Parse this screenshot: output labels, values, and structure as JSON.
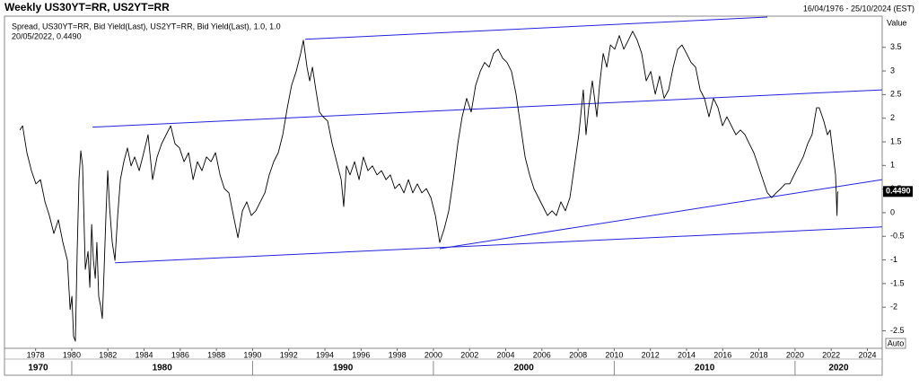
{
  "chart_data": {
    "type": "line",
    "title": "Weekly US30YT=RR, US2YT=RR",
    "date_range": "16/04/1976 - 25/10/2024 (EST)",
    "readout": "20/05/2022, 0.4490",
    "y_axis_label": "Value",
    "scale_button": "Auto",
    "last_value": 0.449,
    "last_value_label": "0.4490",
    "xlim": [
      1976.28,
      2024.82
    ],
    "xticks": [
      1978,
      1980,
      1982,
      1984,
      1986,
      1988,
      1990,
      1992,
      1994,
      1996,
      1998,
      2000,
      2002,
      2004,
      2006,
      2008,
      2010,
      2012,
      2014,
      2016,
      2018,
      2020,
      2022,
      2024
    ],
    "decades": [
      1970,
      1980,
      1990,
      2000,
      2010,
      2020
    ],
    "ylim": [
      -2.87,
      4.16
    ],
    "yticks": [
      3.5,
      3,
      2.5,
      2,
      1.5,
      1,
      0.5,
      0,
      -0.5,
      -1,
      -1.5,
      -2,
      -2.5
    ],
    "trendline_color": "#2222dd",
    "trendlines": [
      {
        "x": [
          1992.91,
          2018.47
        ],
        "y": [
          3.67,
          4.14
        ]
      },
      {
        "x": [
          1981.15,
          2024.82
        ],
        "y": [
          1.81,
          2.6
        ]
      },
      {
        "x": [
          1982.39,
          2024.82
        ],
        "y": [
          -1.06,
          -0.3
        ]
      },
      {
        "x": [
          2000.35,
          2024.82
        ],
        "y": [
          -0.76,
          0.7
        ]
      }
    ],
    "x": [
      1977.13,
      1977.28,
      1977.52,
      1977.77,
      1978.02,
      1978.27,
      1978.52,
      1978.76,
      1979.01,
      1979.26,
      1979.51,
      1979.76,
      1979.91,
      1980.01,
      1980.1,
      1980.2,
      1980.3,
      1980.4,
      1980.5,
      1980.6,
      1980.75,
      1980.9,
      1981.0,
      1981.1,
      1981.2,
      1981.3,
      1981.39,
      1981.49,
      1981.59,
      1981.69,
      1981.79,
      1981.89,
      1981.99,
      1982.09,
      1982.24,
      1982.39,
      1982.54,
      1982.69,
      1982.88,
      1983.08,
      1983.28,
      1983.48,
      1983.73,
      1983.98,
      1984.22,
      1984.47,
      1984.72,
      1984.97,
      1985.22,
      1985.47,
      1985.71,
      1985.96,
      1986.21,
      1986.46,
      1986.71,
      1986.95,
      1987.2,
      1987.45,
      1987.7,
      1987.95,
      1988.2,
      1988.44,
      1988.69,
      1988.94,
      1989.19,
      1989.44,
      1989.68,
      1989.93,
      1990.18,
      1990.43,
      1990.68,
      1990.92,
      1991.17,
      1991.42,
      1991.67,
      1991.92,
      1992.16,
      1992.41,
      1992.66,
      1992.81,
      1993.01,
      1993.16,
      1993.31,
      1993.5,
      1993.7,
      1993.9,
      1994.15,
      1994.4,
      1994.65,
      1994.9,
      1995.04,
      1995.19,
      1995.39,
      1995.64,
      1995.89,
      1996.13,
      1996.38,
      1996.63,
      1996.88,
      1997.13,
      1997.38,
      1997.62,
      1997.87,
      1998.12,
      1998.37,
      1998.62,
      1998.86,
      1999.11,
      1999.36,
      1999.61,
      1999.86,
      2000.11,
      2000.35,
      2000.6,
      2000.85,
      2001.1,
      2001.35,
      2001.59,
      2001.84,
      2002.09,
      2002.34,
      2002.59,
      2002.83,
      2003.08,
      2003.33,
      2003.58,
      2003.83,
      2004.07,
      2004.32,
      2004.57,
      2004.82,
      2005.07,
      2005.32,
      2005.56,
      2005.81,
      2006.06,
      2006.31,
      2006.56,
      2006.8,
      2007.05,
      2007.3,
      2007.55,
      2007.8,
      2008.04,
      2008.29,
      2008.44,
      2008.59,
      2008.79,
      2009.04,
      2009.19,
      2009.39,
      2009.59,
      2009.79,
      2010.03,
      2010.28,
      2010.53,
      2010.78,
      2011.02,
      2011.27,
      2011.52,
      2011.77,
      2012.02,
      2012.27,
      2012.51,
      2012.76,
      2013.01,
      2013.26,
      2013.51,
      2013.75,
      2014.0,
      2014.25,
      2014.5,
      2014.75,
      2014.99,
      2015.24,
      2015.49,
      2015.74,
      2015.99,
      2016.23,
      2016.48,
      2016.73,
      2016.98,
      2017.23,
      2017.47,
      2017.72,
      2017.97,
      2018.22,
      2018.47,
      2018.71,
      2018.96,
      2019.21,
      2019.46,
      2019.71,
      2019.95,
      2020.2,
      2020.45,
      2020.7,
      2020.94,
      2021.19,
      2021.34,
      2021.59,
      2021.79,
      2021.94,
      2022.09,
      2022.24,
      2022.32,
      2022.35,
      2022.38
    ],
    "series": [
      {
        "name": "Spread, US30YT=RR, Bid Yield(Last), US2YT=RR, Bid Yield(Last),  1.0, 1.0",
        "color": "#000000",
        "values": [
          1.75,
          1.84,
          1.27,
          0.89,
          0.61,
          0.7,
          0.23,
          -0.06,
          -0.44,
          -0.15,
          -0.63,
          -1.01,
          -2.05,
          -1.77,
          -2.62,
          -2.72,
          -0.82,
          0.7,
          1.31,
          0.99,
          -1.2,
          -0.82,
          -1.58,
          -0.25,
          -1.01,
          -1.39,
          -0.63,
          -1.77,
          -1.96,
          -2.24,
          -1.2,
          -0.06,
          0.89,
          0.13,
          -0.63,
          -1.01,
          -0.06,
          0.7,
          1.08,
          1.37,
          0.99,
          1.18,
          0.89,
          1.27,
          1.65,
          0.7,
          1.18,
          1.46,
          1.65,
          1.84,
          1.46,
          1.37,
          1.08,
          1.27,
          0.7,
          1.08,
          0.89,
          1.18,
          1.08,
          1.27,
          0.8,
          0.51,
          0.42,
          -0.06,
          -0.53,
          0.04,
          0.23,
          -0.06,
          0.04,
          0.23,
          0.42,
          0.8,
          1.08,
          1.27,
          1.65,
          2.22,
          2.7,
          2.99,
          3.37,
          3.65,
          3.08,
          2.79,
          3.08,
          2.6,
          2.13,
          2.03,
          1.94,
          1.46,
          1.08,
          0.7,
          0.13,
          0.99,
          0.8,
          1.08,
          0.7,
          1.18,
          0.89,
          0.99,
          0.8,
          0.89,
          0.7,
          0.8,
          0.51,
          0.61,
          0.42,
          0.7,
          0.42,
          0.61,
          0.42,
          0.51,
          0.32,
          -0.06,
          -0.63,
          -0.34,
          0.04,
          0.7,
          1.46,
          2.03,
          2.42,
          2.13,
          2.7,
          2.99,
          3.18,
          3.08,
          3.37,
          3.46,
          3.27,
          3.18,
          2.99,
          2.51,
          1.84,
          1.18,
          0.8,
          0.51,
          0.32,
          0.13,
          -0.06,
          0.04,
          -0.06,
          0.23,
          0.04,
          0.32,
          0.99,
          1.65,
          2.6,
          1.65,
          2.22,
          2.79,
          2.03,
          2.7,
          3.37,
          3.08,
          3.55,
          3.46,
          3.75,
          3.46,
          3.65,
          3.84,
          3.65,
          3.37,
          2.79,
          2.99,
          2.51,
          2.89,
          2.42,
          2.6,
          3.08,
          3.46,
          3.55,
          3.37,
          3.18,
          3.08,
          2.6,
          2.42,
          2.03,
          2.42,
          2.22,
          1.84,
          2.03,
          1.84,
          1.65,
          1.75,
          1.65,
          1.46,
          1.27,
          0.99,
          0.7,
          0.42,
          0.32,
          0.42,
          0.51,
          0.61,
          0.61,
          0.8,
          0.99,
          1.18,
          1.46,
          1.65,
          2.22,
          2.22,
          1.94,
          1.65,
          1.75,
          1.27,
          0.8,
          -0.06,
          0.42,
          0.449
        ]
      }
    ]
  }
}
